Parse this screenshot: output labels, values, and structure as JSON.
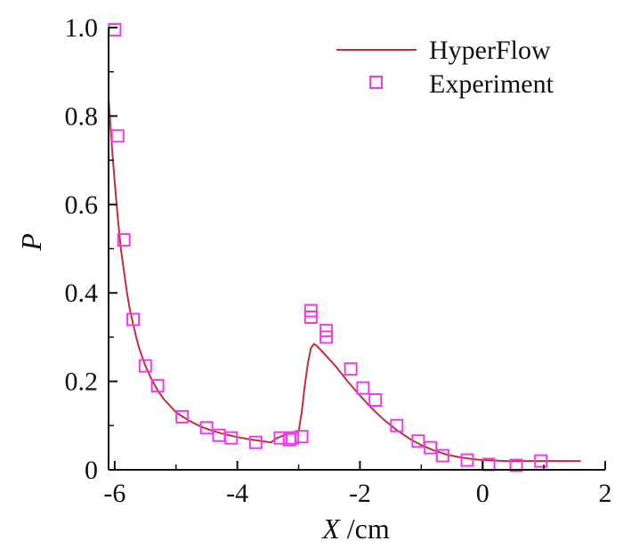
{
  "chart_data": {
    "type": "line",
    "xlabel_var": "X",
    "xlabel_unit": " /cm",
    "ylabel": "P",
    "xlim": [
      -6.1,
      2.0
    ],
    "ylim": [
      0.0,
      1.0
    ],
    "xticks": [
      -6,
      -4,
      -2,
      0,
      2
    ],
    "yticks": [
      0,
      0.2,
      0.4,
      0.6,
      0.8,
      1.0
    ],
    "xtick_labels": [
      "-6",
      "-4",
      "-2",
      "0",
      "2"
    ],
    "ytick_labels": [
      "0",
      "0.2",
      "0.4",
      "0.6",
      "0.8",
      "1.0"
    ],
    "legend_position": "top-right",
    "colors": {
      "line": "#c0303a",
      "markers": "#ee3de8",
      "axes": "#111111"
    },
    "series": [
      {
        "name": "HyperFlow",
        "kind": "line",
        "x": [
          -6.1,
          -6.05,
          -6.0,
          -5.95,
          -5.9,
          -5.85,
          -5.8,
          -5.75,
          -5.7,
          -5.65,
          -5.6,
          -5.5,
          -5.4,
          -5.3,
          -5.2,
          -5.0,
          -4.8,
          -4.6,
          -4.4,
          -4.2,
          -4.0,
          -3.8,
          -3.6,
          -3.45,
          -3.35,
          -3.2,
          -3.1,
          -3.0,
          -2.95,
          -2.9,
          -2.85,
          -2.8,
          -2.75,
          -2.7,
          -2.6,
          -2.5,
          -2.4,
          -2.2,
          -2.0,
          -1.8,
          -1.6,
          -1.4,
          -1.2,
          -1.0,
          -0.8,
          -0.6,
          -0.4,
          -0.2,
          0.0,
          0.2,
          0.4,
          0.6,
          0.8,
          1.0,
          1.2,
          1.4,
          1.6
        ],
        "y": [
          0.84,
          0.74,
          0.65,
          0.57,
          0.5,
          0.45,
          0.4,
          0.36,
          0.33,
          0.3,
          0.275,
          0.235,
          0.205,
          0.18,
          0.16,
          0.13,
          0.112,
          0.098,
          0.088,
          0.08,
          0.074,
          0.069,
          0.065,
          0.062,
          0.072,
          0.08,
          0.085,
          0.088,
          0.13,
          0.19,
          0.24,
          0.275,
          0.285,
          0.28,
          0.265,
          0.25,
          0.235,
          0.2,
          0.168,
          0.138,
          0.112,
          0.09,
          0.071,
          0.056,
          0.044,
          0.035,
          0.029,
          0.025,
          0.022,
          0.021,
          0.02,
          0.02,
          0.02,
          0.02,
          0.02,
          0.02,
          0.02
        ]
      },
      {
        "name": "Experiment",
        "kind": "scatter",
        "x": [
          -6.0,
          -5.95,
          -5.85,
          -5.7,
          -5.5,
          -5.3,
          -4.9,
          -4.5,
          -4.3,
          -4.1,
          -3.7,
          -3.3,
          -3.15,
          -3.1,
          -2.95,
          -2.8,
          -2.8,
          -2.55,
          -2.55,
          -2.15,
          -1.95,
          -1.75,
          -1.4,
          -1.05,
          -0.85,
          -0.65,
          -0.25,
          0.1,
          0.55,
          0.95
        ],
        "y": [
          0.995,
          0.755,
          0.52,
          0.34,
          0.235,
          0.19,
          0.12,
          0.095,
          0.078,
          0.072,
          0.062,
          0.072,
          0.068,
          0.072,
          0.075,
          0.36,
          0.345,
          0.315,
          0.3,
          0.228,
          0.185,
          0.158,
          0.1,
          0.065,
          0.05,
          0.032,
          0.022,
          0.012,
          0.01,
          0.02
        ]
      }
    ]
  }
}
